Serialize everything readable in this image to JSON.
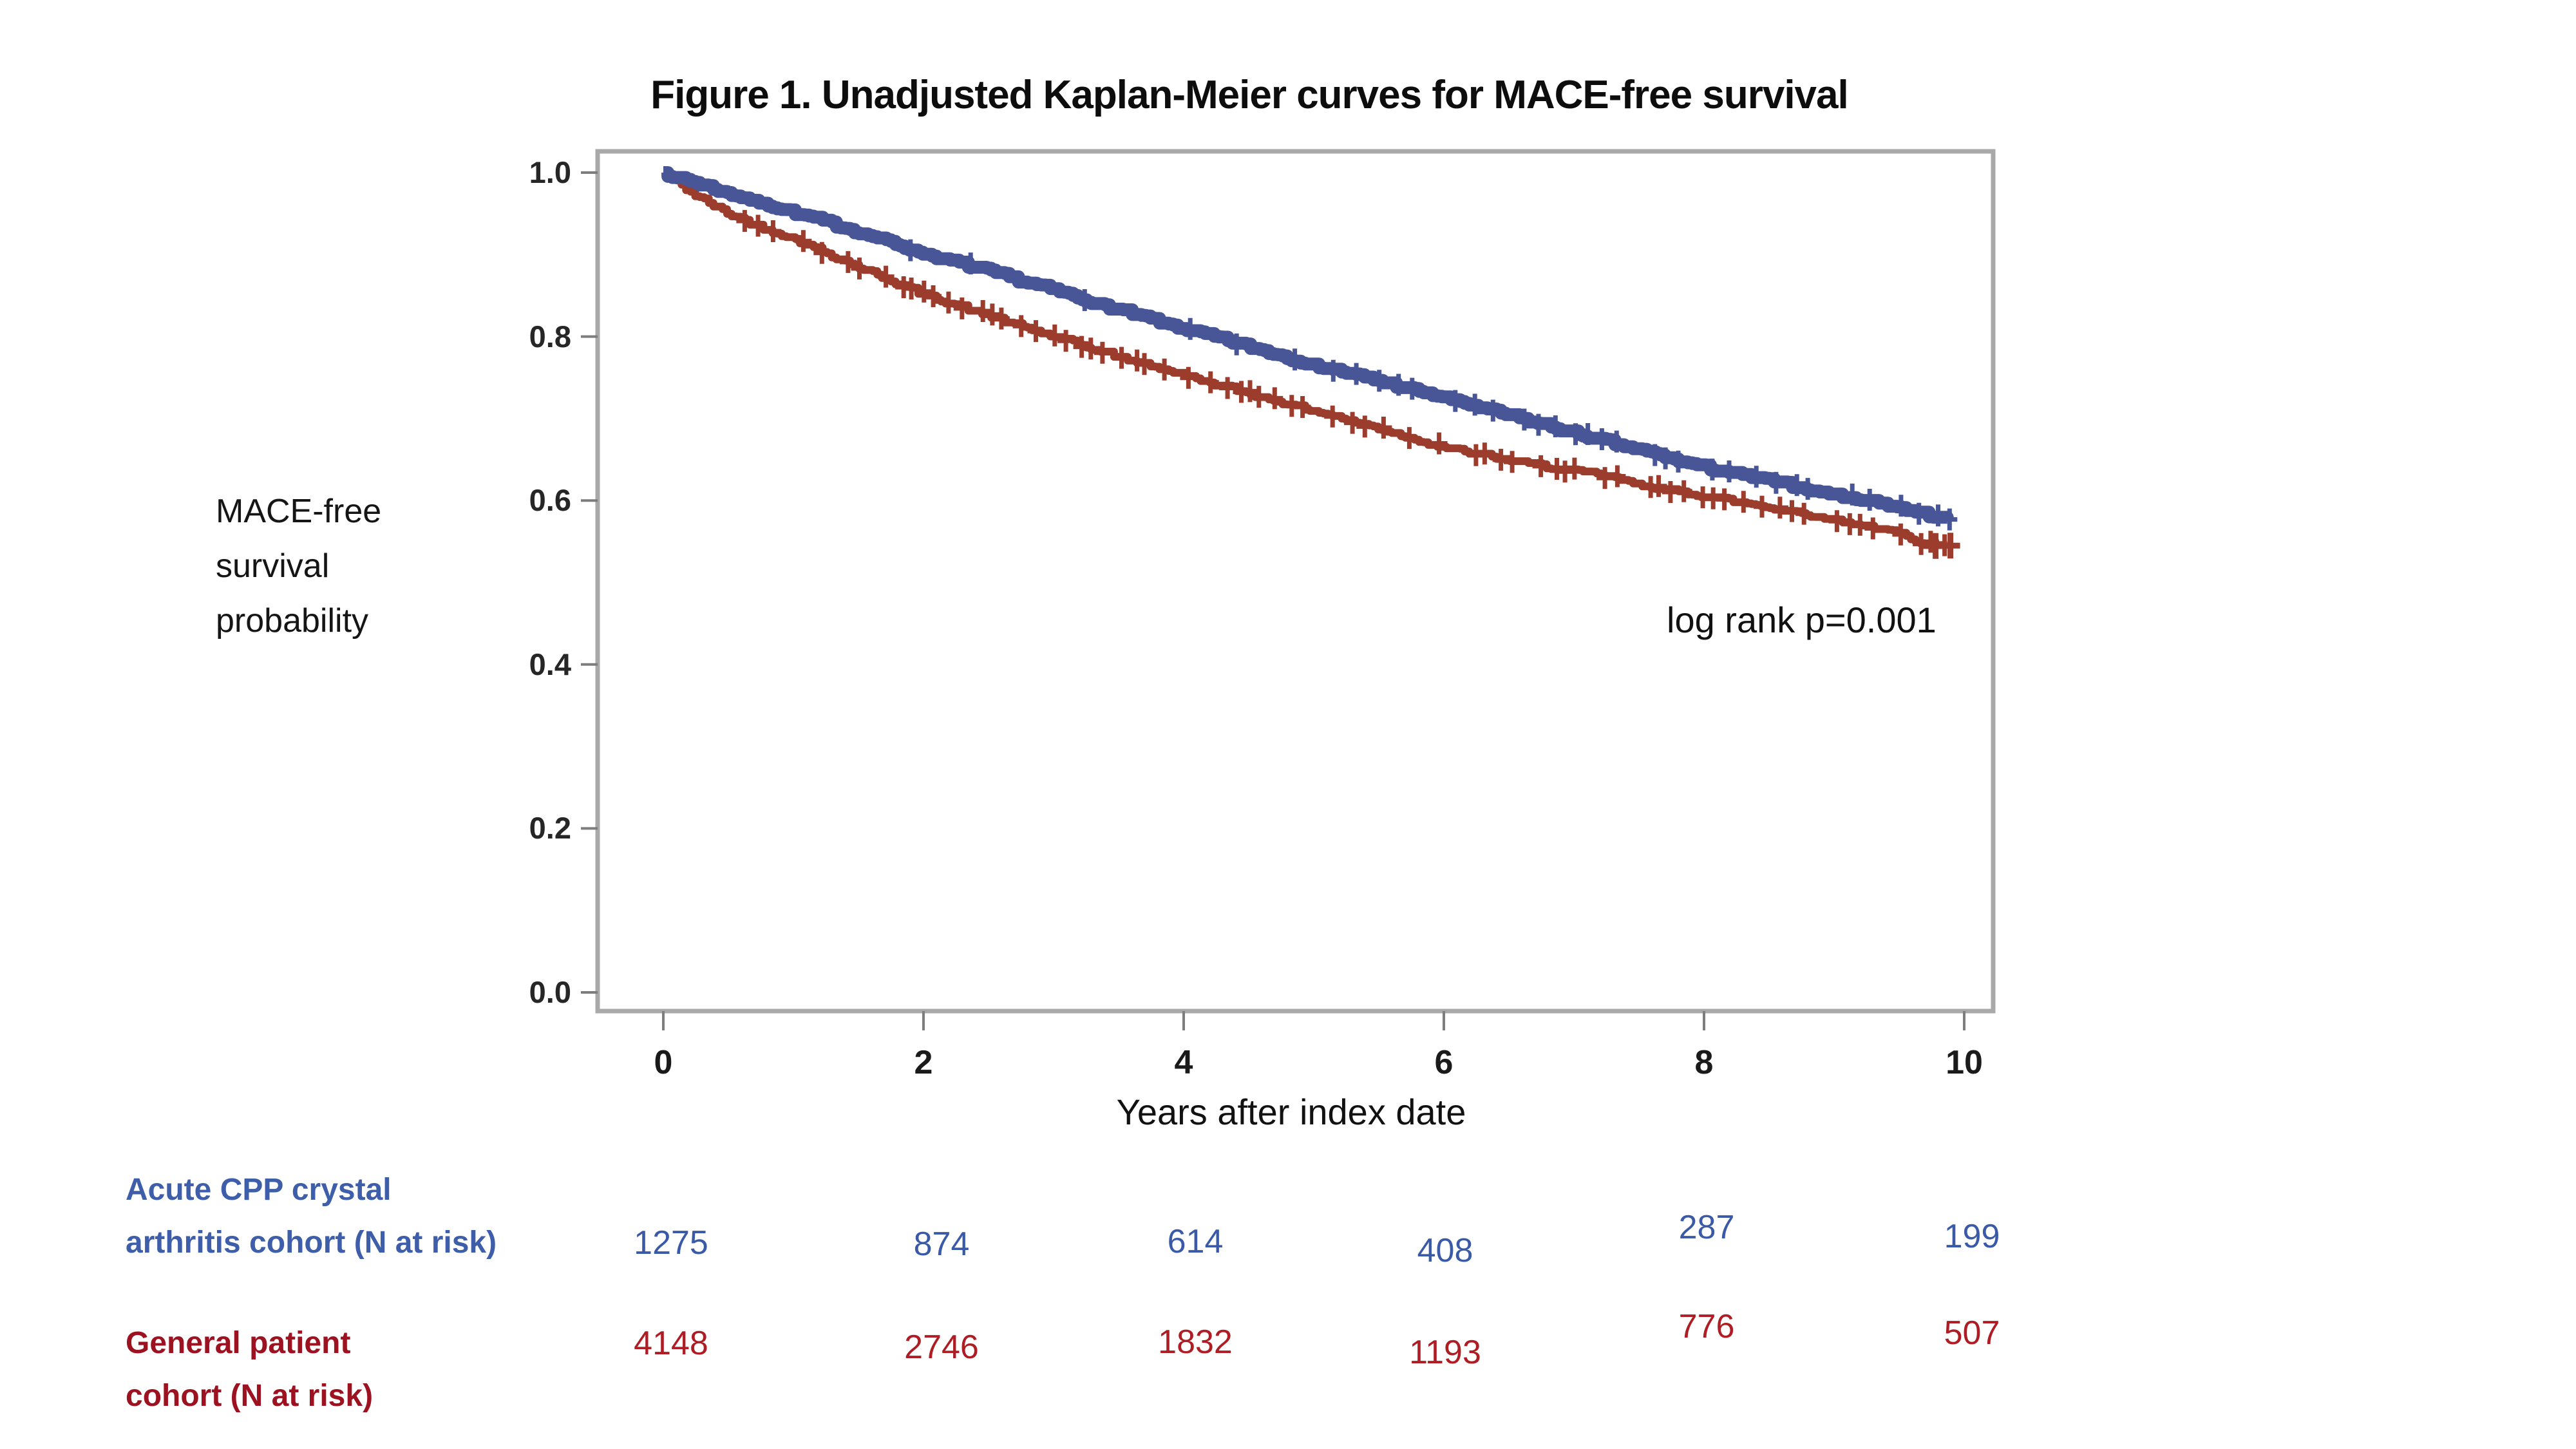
{
  "figure": {
    "title": "Figure 1. Unadjusted Kaplan-Meier curves for MACE-free survival"
  },
  "chart_data": {
    "type": "line",
    "subtype": "kaplan_meier_step_curves",
    "title": "Figure 1. Unadjusted Kaplan-Meier curves for MACE-free survival",
    "xlabel": "Years after index date",
    "ylabel_lines": [
      "MACE-free",
      "survival",
      "probability"
    ],
    "xlim": [
      0,
      10
    ],
    "ylim": [
      0.0,
      1.0
    ],
    "x_ticks": [
      0,
      2,
      4,
      6,
      8,
      10
    ],
    "x_tick_labels": [
      "0",
      "2",
      "4",
      "6",
      "8",
      "10"
    ],
    "y_ticks": [
      0.0,
      0.2,
      0.4,
      0.6,
      0.8,
      1.0
    ],
    "y_tick_labels": [
      "0.0",
      "0.2",
      "0.4",
      "0.6",
      "0.8",
      "1.0"
    ],
    "grid": false,
    "frame_color": "#A9A9A9",
    "tick_color": "#7d7d7d",
    "annotation": {
      "text": "log rank p=0.001",
      "x": 7.75,
      "y": 0.46
    },
    "series": [
      {
        "name": "Acute CPP crystal arthritis cohort",
        "color": "#485596",
        "censor_marker": "+",
        "x": [
          0,
          0.25,
          0.5,
          1,
          1.5,
          2,
          2.5,
          3,
          3.5,
          4,
          4.5,
          5,
          5.5,
          6,
          6.5,
          7,
          7.5,
          8,
          8.5,
          9,
          9.3,
          9.6,
          9.9
        ],
        "values": [
          1.0,
          0.988,
          0.975,
          0.952,
          0.928,
          0.902,
          0.88,
          0.857,
          0.833,
          0.81,
          0.788,
          0.766,
          0.746,
          0.726,
          0.704,
          0.683,
          0.662,
          0.641,
          0.625,
          0.608,
          0.6,
          0.588,
          0.576
        ]
      },
      {
        "name": "General patient cohort",
        "color": "#9B3C2D",
        "censor_marker": "+",
        "x": [
          0,
          0.25,
          0.5,
          0.75,
          1,
          1.5,
          2,
          2.5,
          3,
          3.5,
          4,
          4.5,
          5,
          5.5,
          6,
          6.5,
          7,
          7.2,
          7.5,
          8,
          8.5,
          9,
          9.3,
          9.5,
          9.7,
          9.9
        ],
        "values": [
          1.0,
          0.972,
          0.95,
          0.934,
          0.92,
          0.885,
          0.852,
          0.826,
          0.8,
          0.776,
          0.754,
          0.731,
          0.71,
          0.688,
          0.665,
          0.65,
          0.636,
          0.632,
          0.62,
          0.606,
          0.592,
          0.578,
          0.568,
          0.56,
          0.548,
          0.544
        ]
      }
    ],
    "risk_table": {
      "x": [
        0,
        2,
        4,
        6,
        8,
        10
      ],
      "rows": [
        {
          "label_lines": [
            "Acute CPP crystal",
            "arthritis cohort (N at risk)"
          ],
          "label_color": "#3E5EA9",
          "values_color": "#3A5AA8",
          "values": [
            1275,
            874,
            614,
            408,
            287,
            199
          ]
        },
        {
          "label_lines": [
            "General patient",
            "cohort (N at risk)"
          ],
          "label_color": "#9D1220",
          "values_color": "#AE1C24",
          "values": [
            4148,
            2746,
            1832,
            1193,
            776,
            507
          ]
        }
      ]
    }
  }
}
